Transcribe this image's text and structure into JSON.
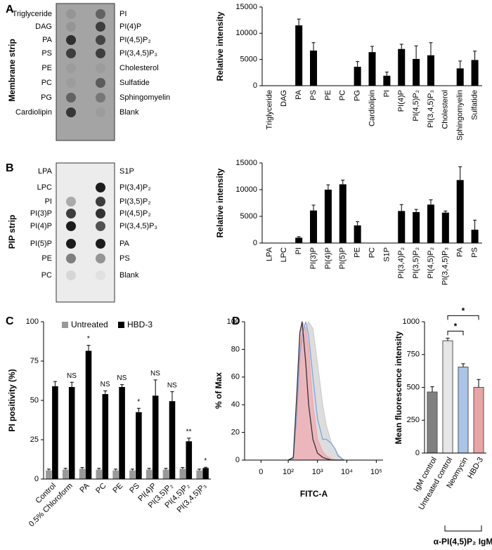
{
  "panels": [
    "A",
    "B",
    "C",
    "D"
  ],
  "blots": [
    {
      "title": "Membrane strip",
      "left": [
        "Triglyceride",
        "DAG",
        "PA",
        "PS",
        "PE",
        "PC",
        "PG",
        "Cardiolipin"
      ],
      "right": [
        "PI",
        "PI(4)P",
        "PI(4,5)P₂",
        "PI(3,4,5)P₃",
        "Cholesterol",
        "Sulfatide",
        "Sphingomyelin",
        "Blank"
      ]
    },
    {
      "title": "PIP strip",
      "left": [
        "LPA",
        "LPC",
        "PI",
        "PI(3)P",
        "PI(4)P",
        "PI(5)P",
        "PE",
        "PC"
      ],
      "right": [
        "S1P",
        "PI(3,4)P₂",
        "PI(3,5)P₂",
        "PI(4,5)P₂",
        "PI(3,4,5)P₃",
        "PA",
        "PS",
        "Blank"
      ]
    }
  ],
  "chart_data": [
    {
      "type": "bar",
      "ylabel": "Relative intensity",
      "categories": [
        "Triglyceride",
        "DAG",
        "PA",
        "PS",
        "PE",
        "PC",
        "PG",
        "Cardiolipin",
        "PI",
        "PI(4)P",
        "PI(4,5)P₂",
        "PI(3,4,5)P₃",
        "Cholesterol",
        "Sphingomyelin",
        "Sulfatide"
      ],
      "values": [
        0,
        0,
        11500,
        6700,
        0,
        0,
        3600,
        6400,
        1900,
        7000,
        5100,
        5800,
        0,
        3300,
        4900
      ],
      "errors": [
        0,
        0,
        1200,
        1500,
        0,
        0,
        1000,
        1100,
        700,
        900,
        2500,
        2400,
        0,
        1400,
        1700
      ],
      "color": "#000000",
      "ylim": [
        0,
        15000
      ],
      "yticks": [
        0,
        5000,
        10000,
        15000
      ]
    },
    {
      "type": "bar",
      "ylabel": "Relative intensity",
      "categories": [
        "LPA",
        "LPC",
        "PI",
        "PI(3)P",
        "PI(4)P",
        "PI(5)P",
        "PE",
        "PC",
        "S1P",
        "PI(3,4)P₂",
        "PI(3,5)P₂",
        "PI(4,5)P₂",
        "PI(3,4,5)P₃",
        "PA",
        "PS"
      ],
      "values": [
        0,
        0,
        1000,
        6100,
        10000,
        11000,
        3300,
        0,
        0,
        6000,
        5800,
        7200,
        5700,
        11800,
        2500
      ],
      "errors": [
        0,
        0,
        200,
        1000,
        900,
        800,
        700,
        0,
        0,
        1200,
        500,
        900,
        300,
        2500,
        1800
      ],
      "color": "#000000",
      "ylim": [
        0,
        15000
      ],
      "yticks": [
        0,
        5000,
        10000,
        15000
      ]
    },
    {
      "type": "grouped_bar",
      "ylabel": "PI positivity (%)",
      "categories": [
        "Control",
        "0.5% Chloroform",
        "PA",
        "PC",
        "PE",
        "PS",
        "PI(4)P",
        "PI(3,5)P₂",
        "PI(4,5)P₂",
        "PI(3,4,5)P₃"
      ],
      "series": [
        {
          "name": "Untreated",
          "color": "#999999",
          "values": [
            5.5,
            6,
            6.5,
            6,
            5.5,
            5.5,
            6,
            6,
            6.5,
            5.5
          ],
          "errors": [
            0.8,
            0.8,
            0.8,
            0.8,
            0.8,
            0.8,
            0.8,
            0.8,
            0.8,
            0.8
          ]
        },
        {
          "name": "HBD-3",
          "color": "#000000",
          "values": [
            59,
            58.5,
            81.5,
            54,
            58.5,
            42.5,
            53,
            49.5,
            24,
            7
          ],
          "errors": [
            3,
            3,
            3.5,
            2,
            1.5,
            2.5,
            10,
            6,
            2,
            0.5
          ]
        }
      ],
      "annotations": [
        null,
        "NS",
        "*",
        "NS",
        "NS",
        "*",
        "NS",
        "NS",
        "**",
        "*"
      ],
      "legend": "top",
      "ylim": [
        0,
        100
      ],
      "yticks": [
        0,
        25,
        50,
        75,
        100
      ]
    },
    {
      "type": "line",
      "xlabel": "FITC-A",
      "ylabel": "% of Max",
      "xscale": "biexponential",
      "x": [
        100,
        150,
        200,
        250,
        300,
        400,
        500,
        700,
        1000,
        1500,
        2000,
        3000,
        4000,
        5000,
        8000
      ],
      "series": [
        {
          "color": "#cfcfcf",
          "filled": true,
          "values": [
            0,
            1,
            30,
            70,
            85,
            95,
            100,
            95,
            70,
            40,
            25,
            12,
            8,
            4,
            0
          ]
        },
        {
          "color": "#f2a6ae",
          "filled": true,
          "values": [
            0,
            1,
            40,
            85,
            100,
            95,
            80,
            40,
            15,
            6,
            3,
            1,
            0,
            0,
            0
          ]
        },
        {
          "color": "#7fa6dc",
          "filled": false,
          "values": [
            0,
            1,
            35,
            75,
            90,
            100,
            90,
            60,
            30,
            15,
            15,
            12,
            8,
            3,
            0
          ]
        },
        {
          "color": "#333333",
          "filled": false,
          "values": [
            0,
            2,
            50,
            92,
            100,
            70,
            40,
            15,
            5,
            2,
            1,
            0,
            0,
            0,
            0
          ]
        }
      ],
      "xlim": [
        -40,
        170000
      ],
      "xticks": [
        0,
        {
          "value": 100,
          "label": "10²"
        },
        {
          "value": 1000,
          "label": "10³"
        },
        {
          "value": 10000,
          "label": "10⁴"
        },
        {
          "value": 100000,
          "label": "10⁵"
        }
      ],
      "ylim": [
        0,
        100
      ],
      "yticks": [
        0,
        20,
        40,
        60,
        80,
        100
      ]
    },
    {
      "type": "bar",
      "ylabel": "Mean fluorescence intensity",
      "categories": [
        "IgM control",
        "Untreated control",
        "Neomycin",
        "HBD-3"
      ],
      "values": [
        465,
        855,
        655,
        500
      ],
      "errors": [
        40,
        20,
        25,
        60
      ],
      "colors": [
        "#808080",
        "#e6e6e6",
        "#a9c4e8",
        "#e8a5a5"
      ],
      "comparisons": [
        {
          "from": 1,
          "to": 2,
          "label": "*"
        },
        {
          "from": 1,
          "to": 3,
          "label": "*"
        }
      ],
      "group": {
        "label": "α-PI(4,5)P₂ IgM",
        "from": 1,
        "to": 3
      },
      "ylim": [
        0,
        1000
      ],
      "yticks": [
        0,
        250,
        500,
        750,
        1000
      ]
    }
  ]
}
